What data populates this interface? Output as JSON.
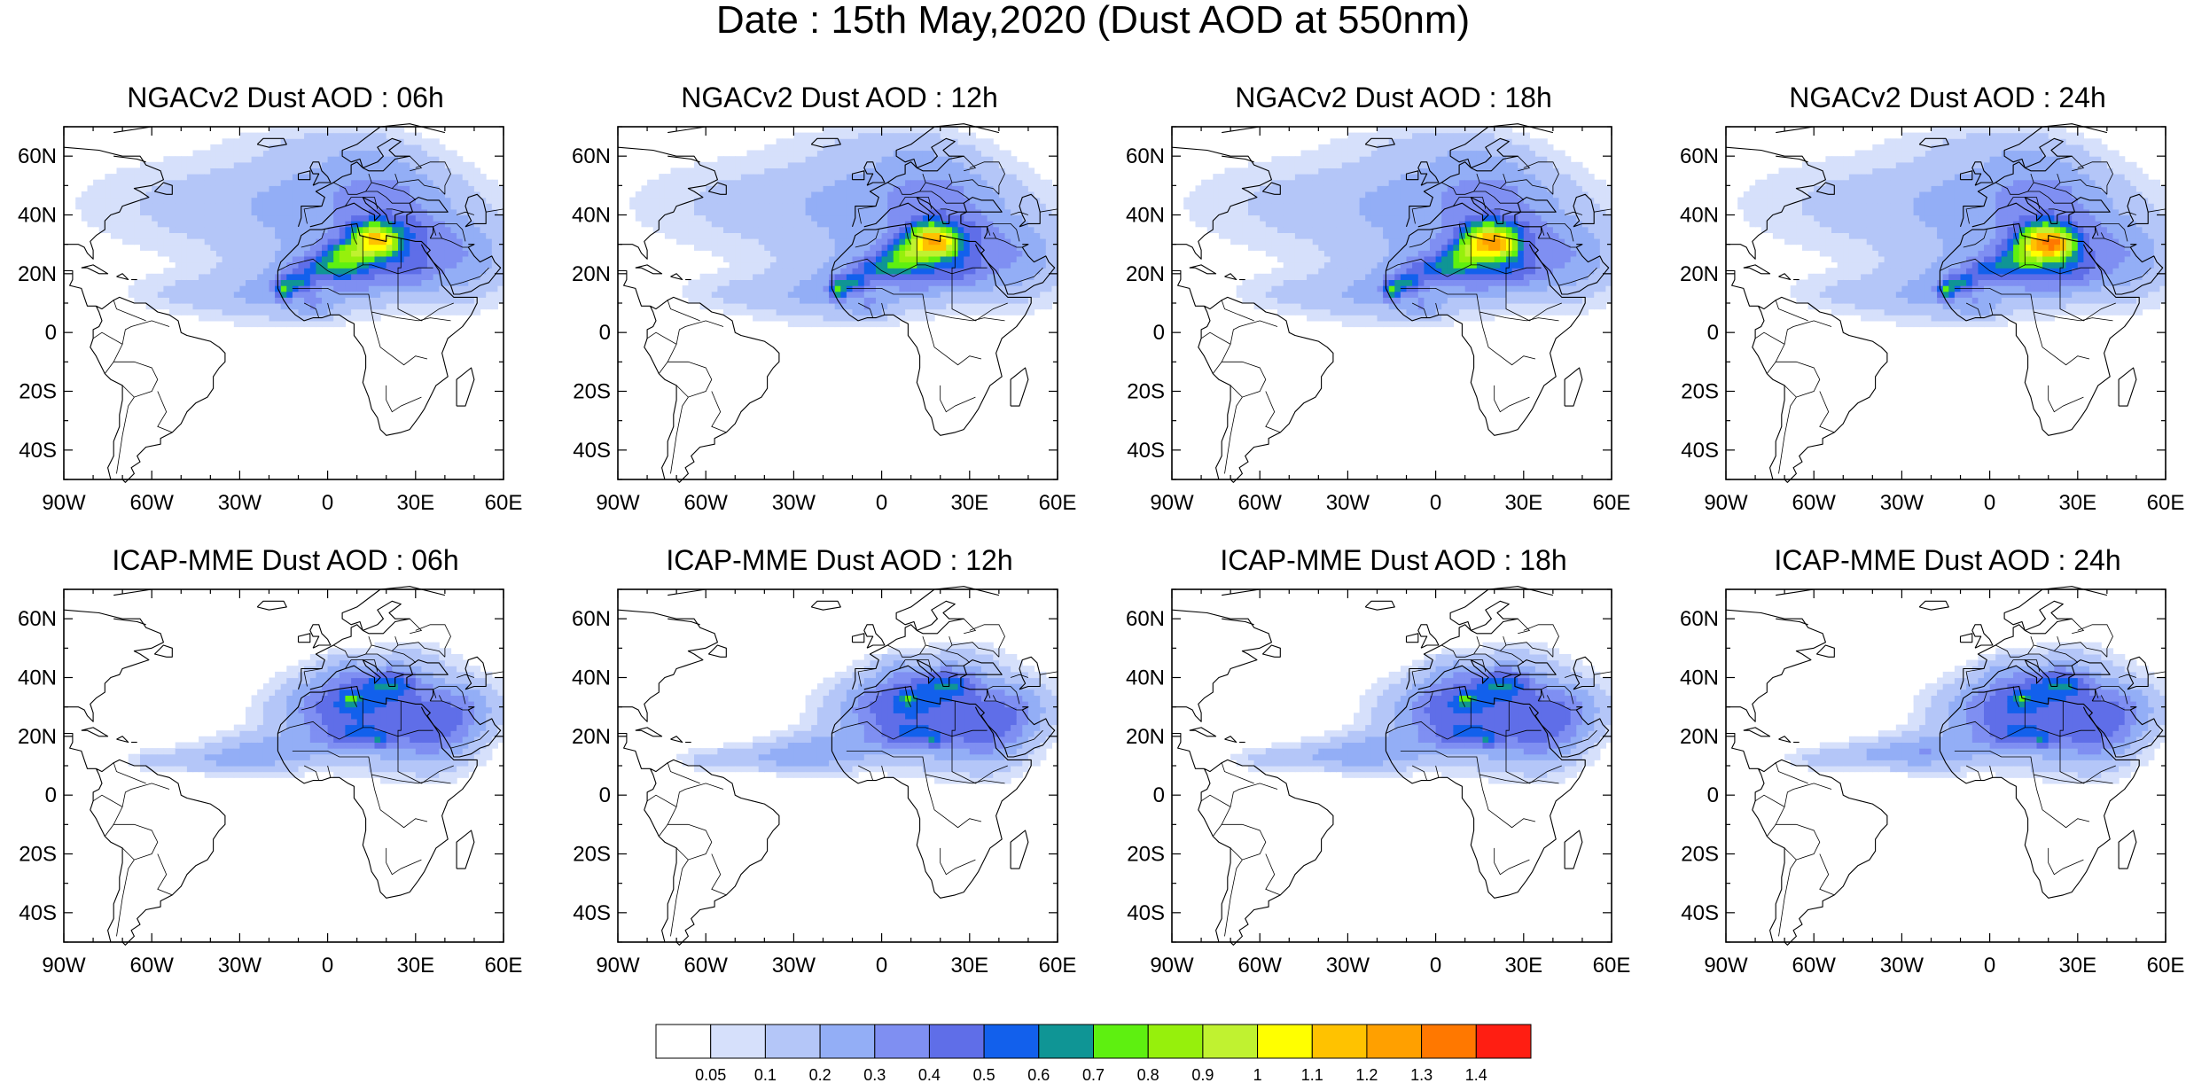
{
  "title": "Date : 15th May,2020 (Dust AOD at 550nm)",
  "panels": [
    {
      "title": "NGACv2 Dust AOD : 06h",
      "model": "NGAC",
      "hour": 6
    },
    {
      "title": "NGACv2 Dust AOD : 12h",
      "model": "NGAC",
      "hour": 12
    },
    {
      "title": "NGACv2 Dust AOD : 18h",
      "model": "NGAC",
      "hour": 18
    },
    {
      "title": "NGACv2 Dust AOD : 24h",
      "model": "NGAC",
      "hour": 24
    },
    {
      "title": "ICAP-MME Dust AOD : 06h",
      "model": "ICAP",
      "hour": 6
    },
    {
      "title": "ICAP-MME Dust AOD : 12h",
      "model": "ICAP",
      "hour": 12
    },
    {
      "title": "ICAP-MME Dust AOD : 18h",
      "model": "ICAP",
      "hour": 18
    },
    {
      "title": "ICAP-MME Dust AOD : 24h",
      "model": "ICAP",
      "hour": 24
    }
  ],
  "map": {
    "lon_range": [
      -90,
      60
    ],
    "lat_range": [
      -50,
      70
    ],
    "lon_ticks": [
      {
        "value": -90,
        "label": "90W"
      },
      {
        "value": -60,
        "label": "60W"
      },
      {
        "value": -30,
        "label": "30W"
      },
      {
        "value": 0,
        "label": "0"
      },
      {
        "value": 30,
        "label": "30E"
      },
      {
        "value": 60,
        "label": "60E"
      }
    ],
    "lat_ticks": [
      {
        "value": 60,
        "label": "60N"
      },
      {
        "value": 40,
        "label": "40N"
      },
      {
        "value": 20,
        "label": "20N"
      },
      {
        "value": 0,
        "label": "0"
      },
      {
        "value": -20,
        "label": "20S"
      },
      {
        "value": -40,
        "label": "40S"
      }
    ]
  },
  "colorbar": {
    "colors": [
      "#ffffff",
      "#d6e0fb",
      "#b4c6f8",
      "#93aef6",
      "#7f8ff2",
      "#5f6ee8",
      "#1260ec",
      "#0f9595",
      "#5ef010",
      "#96f00c",
      "#c0f230",
      "#ffff00",
      "#ffc200",
      "#ffa000",
      "#ff7800",
      "#ff1e12"
    ],
    "labels": [
      "0.05",
      "0.1",
      "0.2",
      "0.3",
      "0.4",
      "0.5",
      "0.6",
      "0.7",
      "0.8",
      "0.9",
      "1",
      "1.1",
      "1.2",
      "1.3",
      "1.4"
    ]
  }
}
